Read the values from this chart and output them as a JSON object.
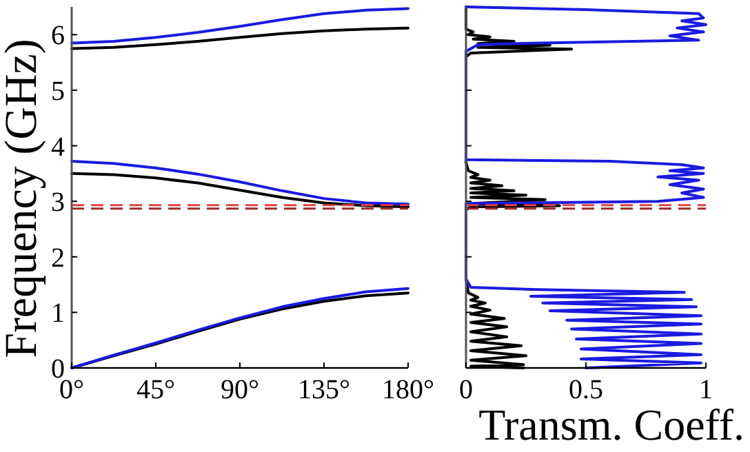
{
  "chart_data": [
    {
      "type": "line",
      "ylabel": "Frequency (GHz)",
      "xlim": [
        0,
        180
      ],
      "ylim": [
        0,
        6.5
      ],
      "xticks": [
        {
          "value": 0,
          "label": "0°"
        },
        {
          "value": 45,
          "label": "45°"
        },
        {
          "value": 90,
          "label": "90°"
        },
        {
          "value": 135,
          "label": "135°"
        },
        {
          "value": 180,
          "label": "180°"
        }
      ],
      "yticks": [
        0,
        1,
        2,
        3,
        4,
        5,
        6
      ],
      "series": [
        {
          "color": "#000000",
          "x": [
            0,
            22.5,
            45,
            67.5,
            90,
            112.5,
            135,
            157.5,
            180
          ],
          "values": [
            0,
            0.22,
            0.43,
            0.66,
            0.88,
            1.06,
            1.2,
            1.3,
            1.35
          ]
        },
        {
          "color": "#1a1ae0",
          "x": [
            0,
            22.5,
            45,
            67.5,
            90,
            112.5,
            135,
            157.5,
            180
          ],
          "values": [
            0,
            0.23,
            0.45,
            0.68,
            0.9,
            1.1,
            1.25,
            1.37,
            1.43
          ]
        },
        {
          "color": "#000000",
          "x": [
            0,
            22.5,
            45,
            67.5,
            90,
            112.5,
            135,
            157.5,
            180
          ],
          "values": [
            3.5,
            3.48,
            3.42,
            3.33,
            3.2,
            3.07,
            2.97,
            2.92,
            2.9
          ]
        },
        {
          "color": "#1a1ae0",
          "x": [
            0,
            22.5,
            45,
            67.5,
            90,
            112.5,
            135,
            157.5,
            180
          ],
          "values": [
            3.72,
            3.68,
            3.6,
            3.49,
            3.35,
            3.19,
            3.05,
            2.97,
            2.95
          ]
        },
        {
          "color": "#000000",
          "x": [
            0,
            22.5,
            45,
            67.5,
            90,
            112.5,
            135,
            157.5,
            180
          ],
          "values": [
            5.75,
            5.77,
            5.82,
            5.88,
            5.95,
            6.02,
            6.07,
            6.1,
            6.12
          ]
        },
        {
          "color": "#1a1ae0",
          "x": [
            0,
            22.5,
            45,
            67.5,
            90,
            112.5,
            135,
            157.5,
            180
          ],
          "values": [
            5.85,
            5.88,
            5.95,
            6.04,
            6.15,
            6.27,
            6.38,
            6.44,
            6.47
          ]
        }
      ],
      "ref_lines": [
        {
          "axis": "y",
          "value": 2.87,
          "color": "#a02828",
          "line_style": "dashed"
        },
        {
          "axis": "y",
          "value": 2.93,
          "color": "#e04040",
          "line_style": "dashed"
        }
      ]
    },
    {
      "type": "line",
      "xlabel": "Transm. Coeff.",
      "xlim": [
        0,
        1
      ],
      "ylim": [
        0,
        6.5
      ],
      "xticks": [
        0,
        0.5,
        1
      ],
      "yticks": [
        0,
        1,
        2,
        3,
        4,
        5,
        6
      ],
      "tick_labels": "x",
      "series": [
        {
          "color": "#000000",
          "x": [
            0.24,
            0.02,
            0.24,
            0.02,
            0.25,
            0.02,
            0.23,
            0.02,
            0.17,
            0.02,
            0.17,
            0.02,
            0.16,
            0.02,
            0.1,
            0.02,
            0.08,
            0.02,
            0.05,
            0.01,
            0,
            0,
            0.02,
            0.39,
            0.02,
            0.33,
            0.02,
            0.25,
            0.02,
            0.2,
            0.02,
            0.15,
            0.02,
            0.1,
            0.02,
            0.05,
            0.01,
            0,
            0,
            0.02,
            0.44,
            0.05,
            0.35,
            0.05,
            0.2,
            0.03,
            0.1,
            0.01,
            0.03,
            0,
            0
          ],
          "values": [
            0,
            0.03,
            0.06,
            0.14,
            0.22,
            0.31,
            0.4,
            0.48,
            0.56,
            0.65,
            0.74,
            0.82,
            0.89,
            0.97,
            1.04,
            1.11,
            1.17,
            1.22,
            1.27,
            1.35,
            1.6,
            2.85,
            2.9,
            2.92,
            2.96,
            3.03,
            3.07,
            3.11,
            3.15,
            3.19,
            3.23,
            3.28,
            3.33,
            3.38,
            3.43,
            3.48,
            3.55,
            3.7,
            5.6,
            5.67,
            5.74,
            5.77,
            5.81,
            5.84,
            5.88,
            5.92,
            5.96,
            6,
            6.05,
            6.1,
            6.5
          ]
        },
        {
          "color": "#1a1ae0",
          "x": [
            0.5,
            0.98,
            0.48,
            0.98,
            0.48,
            0.98,
            0.46,
            0.98,
            0.44,
            0.98,
            0.42,
            0.98,
            0.35,
            0.96,
            0.32,
            0.94,
            0.27,
            0.91,
            0.3,
            0.02,
            0,
            0,
            0.8,
            0.99,
            0.9,
            0.99,
            0.85,
            0.97,
            0.8,
            0.99,
            0.85,
            0.99,
            0.9,
            0.6,
            0,
            0,
            0.05,
            0.3,
            0.97,
            0.85,
            0.99,
            0.88,
            1,
            0.9,
            0.99,
            0.97,
            0.5,
            0
          ],
          "values": [
            0,
            0.09,
            0.16,
            0.24,
            0.34,
            0.44,
            0.52,
            0.61,
            0.7,
            0.79,
            0.86,
            0.94,
            1.03,
            1.1,
            1.17,
            1.23,
            1.29,
            1.36,
            1.41,
            1.45,
            1.6,
            2.96,
            3,
            3.07,
            3.15,
            3.22,
            3.3,
            3.38,
            3.44,
            3.5,
            3.55,
            3.6,
            3.66,
            3.72,
            3.75,
            5.7,
            5.82,
            5.85,
            5.9,
            5.98,
            6.05,
            6.12,
            6.18,
            6.25,
            6.3,
            6.38,
            6.45,
            6.5
          ]
        }
      ],
      "ref_lines": [
        {
          "axis": "y",
          "value": 2.87,
          "color": "#a02828",
          "line_style": "dashed"
        },
        {
          "axis": "y",
          "value": 2.93,
          "color": "#e04040",
          "line_style": "dashed"
        }
      ]
    }
  ]
}
